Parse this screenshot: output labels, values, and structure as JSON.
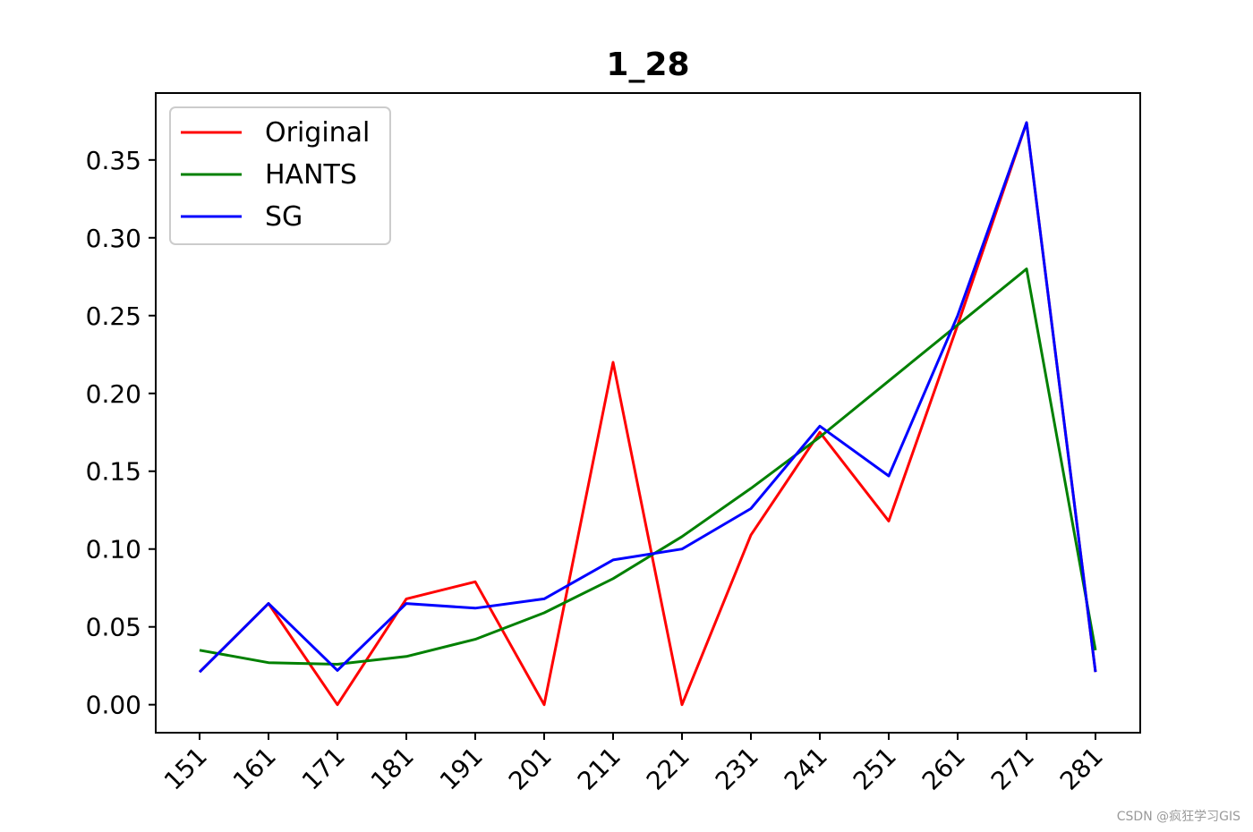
{
  "chart_data": {
    "type": "line",
    "title": "1_28",
    "xlabel": "",
    "ylabel": "",
    "x": [
      151,
      161,
      171,
      181,
      191,
      201,
      211,
      221,
      231,
      241,
      251,
      261,
      271,
      281
    ],
    "xtick_labels": [
      "151",
      "161",
      "171",
      "181",
      "191",
      "201",
      "211",
      "221",
      "231",
      "241",
      "251",
      "261",
      "271",
      "281"
    ],
    "ylim": [
      -0.018,
      0.393
    ],
    "yticks": [
      0.0,
      0.05,
      0.1,
      0.15,
      0.2,
      0.25,
      0.3,
      0.35
    ],
    "ytick_labels": [
      "0.00",
      "0.05",
      "0.10",
      "0.15",
      "0.20",
      "0.25",
      "0.30",
      "0.35"
    ],
    "legend_position": "top-left",
    "grid": false,
    "series": [
      {
        "name": "Original",
        "color": "#ff0000",
        "values": [
          0.021,
          0.065,
          0.0,
          0.068,
          0.079,
          0.0,
          0.22,
          0.0,
          0.109,
          0.175,
          0.118,
          0.244,
          0.374,
          0.021
        ]
      },
      {
        "name": "HANTS",
        "color": "#008000",
        "values": [
          0.035,
          0.027,
          0.026,
          0.031,
          0.042,
          0.059,
          0.081,
          0.108,
          0.139,
          0.172,
          0.208,
          0.244,
          0.28,
          0.035
        ]
      },
      {
        "name": "SG",
        "color": "#0000ff",
        "values": [
          0.021,
          0.065,
          0.022,
          0.065,
          0.062,
          0.068,
          0.093,
          0.1,
          0.126,
          0.179,
          0.147,
          0.25,
          0.374,
          0.021
        ]
      }
    ]
  },
  "watermark": "CSDN @疯狂学习GIS"
}
